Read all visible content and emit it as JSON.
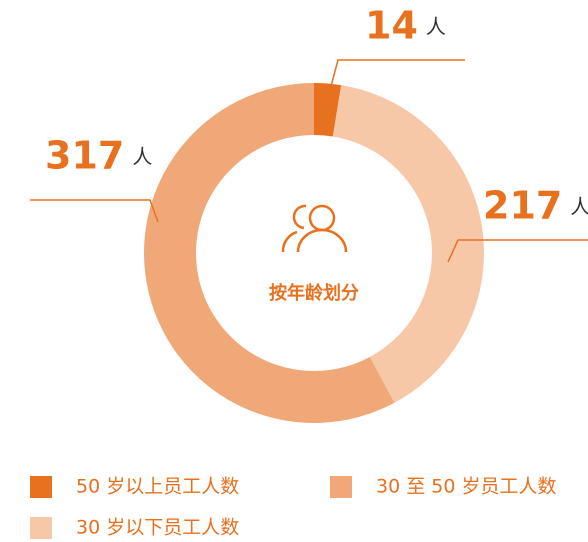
{
  "chart_data": {
    "type": "donut",
    "center_label": "按年龄划分",
    "unit": "人",
    "categories": [
      "50 岁以上员工人数",
      "30 岁以下员工人数",
      "30 至 50 岁员工人数"
    ],
    "values": [
      14,
      217,
      317
    ],
    "colors": [
      "#e8711f",
      "#f7c8a8",
      "#f0a878"
    ],
    "legend_order": [
      0,
      2,
      1
    ]
  }
}
